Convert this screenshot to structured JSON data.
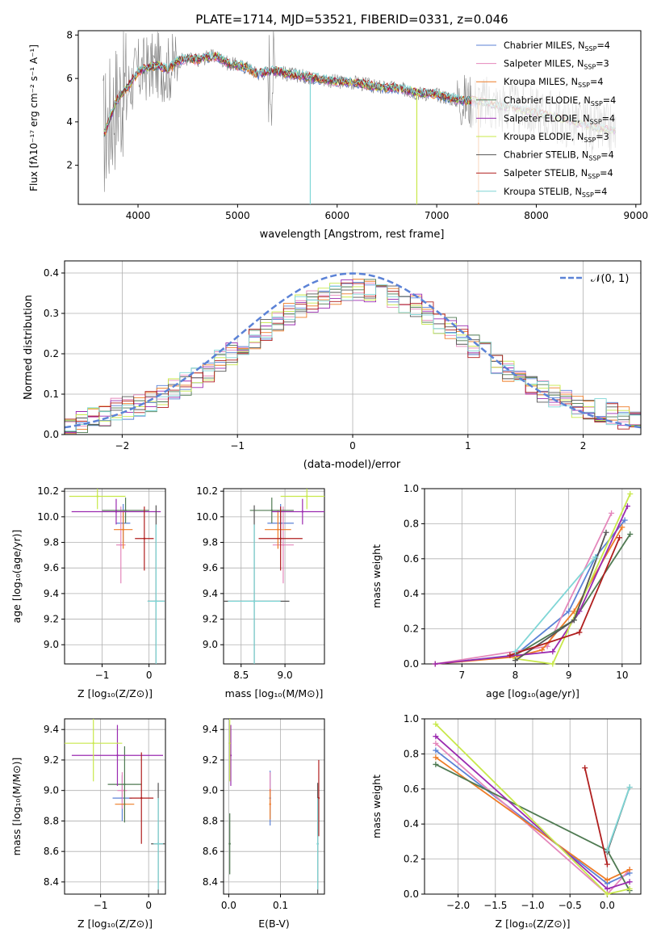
{
  "figure_title": "PLATE=1714, MJD=53521, FIBERID=0331, z=0.046",
  "colors": {
    "chabrier_miles": "#5b82d6",
    "salpeter_miles": "#e487bb",
    "kroupa_miles": "#ee7c26",
    "chabrier_elodie": "#4f7a52",
    "salpeter_elodie": "#9b2bb0",
    "kroupa_elodie": "#c8e84a",
    "chabrier_stelib": "#555555",
    "salpeter_stelib": "#b01e1e",
    "kroupa_stelib": "#7fd6d6",
    "data": "#808080",
    "gaussian": "#5b82d6",
    "grid": "#b0b0b0"
  },
  "chart_data": [
    {
      "id": "spectrum",
      "type": "line",
      "xlabel": "wavelength [Angstrom, rest frame]",
      "ylabel": "Flux [fλ10⁻¹⁷ erg cm⁻² s⁻¹ A⁻¹]",
      "xlim": [
        3400,
        9050
      ],
      "ylim": [
        0.2,
        8.2
      ],
      "xticks": [
        "4000",
        "5000",
        "6000",
        "7000",
        "8000",
        "9000"
      ],
      "yticks": [
        "2",
        "4",
        "6",
        "8"
      ],
      "grid": false,
      "legend_position": "top-right",
      "legend": [
        {
          "label": "Chabrier MILES, N",
          "sub": "SSP",
          "tail": "=4",
          "color_key": "chabrier_miles"
        },
        {
          "label": "Salpeter MILES, N",
          "sub": "SSP",
          "tail": "=3",
          "color_key": "salpeter_miles"
        },
        {
          "label": "Kroupa MILES, N",
          "sub": "SSP",
          "tail": "=4",
          "color_key": "kroupa_miles"
        },
        {
          "label": "Chabrier ELODIE, N",
          "sub": "SSP",
          "tail": "=4",
          "color_key": "chabrier_elodie"
        },
        {
          "label": "Salpeter ELODIE, N",
          "sub": "SSP",
          "tail": "=4",
          "color_key": "salpeter_elodie"
        },
        {
          "label": "Kroupa ELODIE, N",
          "sub": "SSP",
          "tail": "=3",
          "color_key": "kroupa_elodie"
        },
        {
          "label": "Chabrier STELIB, N",
          "sub": "SSP",
          "tail": "=4",
          "color_key": "chabrier_stelib"
        },
        {
          "label": "Salpeter STELIB, N",
          "sub": "SSP",
          "tail": "=4",
          "color_key": "salpeter_stelib"
        },
        {
          "label": "Kroupa STELIB, N",
          "sub": "SSP",
          "tail": "=4",
          "color_key": "kroupa_stelib"
        }
      ],
      "model_continuum": {
        "x": [
          3650,
          3700,
          3750,
          3800,
          3900,
          4000,
          4100,
          4200,
          4300,
          4400,
          4500,
          4600,
          4700,
          4800,
          4900,
          5000,
          5100,
          5200,
          5300,
          5400,
          5500,
          5600,
          5800,
          6000,
          6200,
          6400,
          6600,
          6800,
          7000,
          7200,
          7400,
          7600,
          7800,
          8000,
          8200,
          8400,
          8600,
          8800
        ],
        "y": [
          3.4,
          3.9,
          4.6,
          5.1,
          5.6,
          6.3,
          6.5,
          6.6,
          6.4,
          6.8,
          6.9,
          6.85,
          7.0,
          7.0,
          6.7,
          6.6,
          6.5,
          6.2,
          6.3,
          6.35,
          6.2,
          6.15,
          6.0,
          5.85,
          5.8,
          5.6,
          5.55,
          5.35,
          5.25,
          5.0,
          4.95,
          4.75,
          4.6,
          4.4,
          4.2,
          3.95,
          3.7,
          3.55
        ]
      },
      "telluric_drops": [
        {
          "x": 5730,
          "color_key": "kroupa_stelib"
        },
        {
          "x": 6800,
          "color_key": "kroupa_elodie"
        },
        {
          "x": 7420,
          "color_key": "kroupa_miles"
        }
      ]
    },
    {
      "id": "residuals",
      "type": "histogram",
      "xlabel": "(data-model)/error",
      "ylabel": "Normed distribution",
      "xlim": [
        -2.5,
        2.5
      ],
      "ylim": [
        0,
        0.43
      ],
      "xticks": [
        "−2",
        "−1",
        "0",
        "1",
        "2"
      ],
      "yticks": [
        "0.0",
        "0.1",
        "0.2",
        "0.3",
        "0.4"
      ],
      "grid": true,
      "legend_position": "top-right",
      "legend_label": "𝒩(0, 1)",
      "bin_width": 0.1,
      "approx_values": [
        0.02,
        0.03,
        0.04,
        0.05,
        0.06,
        0.065,
        0.07,
        0.08,
        0.095,
        0.11,
        0.125,
        0.14,
        0.16,
        0.18,
        0.2,
        0.22,
        0.24,
        0.26,
        0.28,
        0.3,
        0.32,
        0.33,
        0.34,
        0.35,
        0.355,
        0.36,
        0.355,
        0.35,
        0.34,
        0.33,
        0.32,
        0.3,
        0.28,
        0.26,
        0.24,
        0.22,
        0.2,
        0.18,
        0.16,
        0.14,
        0.125,
        0.11,
        0.095,
        0.08,
        0.07,
        0.065,
        0.06,
        0.05,
        0.04,
        0.03
      ]
    },
    {
      "id": "age_vs_Z",
      "type": "scatter",
      "xlabel": "Z [log₁₀(Z/Z⊙)]",
      "ylabel": "age  [log₁₀(age/yr)]",
      "xlim": [
        -1.8,
        0.35
      ],
      "ylim": [
        8.85,
        10.22
      ],
      "xticks": [
        "−1",
        "0"
      ],
      "yticks": [
        "9.0",
        "9.2",
        "9.4",
        "9.6",
        "9.8",
        "10.0",
        "10.2"
      ],
      "grid": true,
      "points": [
        {
          "x": -0.55,
          "y": 9.95,
          "xerr": 0.15,
          "yerr": 0.15,
          "color_key": "chabrier_miles"
        },
        {
          "x": -0.6,
          "y": 9.78,
          "xerr": 0.1,
          "yerr": 0.3,
          "color_key": "salpeter_miles"
        },
        {
          "x": -0.55,
          "y": 9.9,
          "xerr": 0.2,
          "yerr": 0.15,
          "color_key": "kroupa_miles"
        },
        {
          "x": -0.5,
          "y": 10.05,
          "xerr": 0.5,
          "yerr": 0.1,
          "color_key": "chabrier_elodie"
        },
        {
          "x": -0.7,
          "y": 10.04,
          "xerr": 0.95,
          "yerr": 0.1,
          "color_key": "salpeter_elodie"
        },
        {
          "x": -1.1,
          "y": 10.16,
          "xerr": 0.6,
          "yerr": 0.1,
          "color_key": "kroupa_elodie"
        },
        {
          "x": 0.15,
          "y": 9.34,
          "xerr": 0.18,
          "yerr": 0.75,
          "color_key": "chabrier_stelib"
        },
        {
          "x": -0.1,
          "y": 9.83,
          "xerr": 0.2,
          "yerr": 0.25,
          "color_key": "salpeter_stelib"
        },
        {
          "x": 0.15,
          "y": 9.34,
          "xerr": 0.18,
          "yerr": 0.6,
          "color_key": "kroupa_stelib"
        }
      ]
    },
    {
      "id": "age_vs_mass",
      "type": "scatter",
      "xlabel": "mass [log₁₀(M/M⊙)]",
      "ylabel": "",
      "xlim": [
        8.3,
        9.45
      ],
      "ylim": [
        8.85,
        10.22
      ],
      "xticks": [
        "8.5",
        "9.0"
      ],
      "yticks": [
        "9.0",
        "9.2",
        "9.4",
        "9.6",
        "9.8",
        "10.0",
        "10.2"
      ],
      "grid": true,
      "points": [
        {
          "x": 8.95,
          "y": 9.95,
          "xerr": 0.15,
          "yerr": 0.15,
          "color_key": "chabrier_miles"
        },
        {
          "x": 8.98,
          "y": 9.78,
          "xerr": 0.12,
          "yerr": 0.3,
          "color_key": "salpeter_miles"
        },
        {
          "x": 8.92,
          "y": 9.9,
          "xerr": 0.15,
          "yerr": 0.15,
          "color_key": "kroupa_miles"
        },
        {
          "x": 8.85,
          "y": 10.05,
          "xerr": 0.25,
          "yerr": 0.1,
          "color_key": "chabrier_elodie"
        },
        {
          "x": 9.2,
          "y": 10.04,
          "xerr": 0.35,
          "yerr": 0.1,
          "color_key": "salpeter_elodie"
        },
        {
          "x": 9.25,
          "y": 10.16,
          "xerr": 0.3,
          "yerr": 0.1,
          "color_key": "kroupa_elodie"
        },
        {
          "x": 8.65,
          "y": 9.34,
          "xerr": 0.4,
          "yerr": 0.75,
          "color_key": "chabrier_stelib"
        },
        {
          "x": 8.95,
          "y": 9.83,
          "xerr": 0.25,
          "yerr": 0.25,
          "color_key": "salpeter_stelib"
        },
        {
          "x": 8.65,
          "y": 9.34,
          "xerr": 0.3,
          "yerr": 0.6,
          "color_key": "kroupa_stelib"
        }
      ]
    },
    {
      "id": "mass_weight_vs_age",
      "type": "line",
      "xlabel": "age  [log₁₀(age/yr)]",
      "ylabel": "mass weight",
      "xlim": [
        6.3,
        10.35
      ],
      "ylim": [
        0,
        1.0
      ],
      "xticks": [
        "7",
        "8",
        "9",
        "10"
      ],
      "yticks": [
        "0.0",
        "0.2",
        "0.4",
        "0.6",
        "0.8",
        "1.0"
      ],
      "grid": true,
      "series": [
        {
          "color_key": "chabrier_miles",
          "x": [
            6.5,
            8.0,
            9.0,
            9.5,
            10.05
          ],
          "y": [
            0.0,
            0.05,
            0.3,
            0.61,
            0.82
          ]
        },
        {
          "color_key": "salpeter_miles",
          "x": [
            6.5,
            8.6,
            9.8
          ],
          "y": [
            0.0,
            0.1,
            0.86
          ]
        },
        {
          "color_key": "kroupa_miles",
          "x": [
            6.5,
            8.0,
            8.5,
            9.1,
            10.0
          ],
          "y": [
            0.0,
            0.04,
            0.08,
            0.3,
            0.78
          ]
        },
        {
          "color_key": "chabrier_elodie",
          "x": [
            8.0,
            9.1,
            10.15
          ],
          "y": [
            0.05,
            0.25,
            0.74
          ]
        },
        {
          "color_key": "salpeter_elodie",
          "x": [
            6.5,
            8.7,
            9.2,
            10.1
          ],
          "y": [
            0.0,
            0.07,
            0.3,
            0.9
          ]
        },
        {
          "color_key": "kroupa_elodie",
          "x": [
            8.0,
            8.7,
            10.15
          ],
          "y": [
            0.03,
            0.0,
            0.97
          ]
        },
        {
          "color_key": "chabrier_stelib",
          "x": [
            8.0,
            9.1,
            9.7
          ],
          "y": [
            0.02,
            0.25,
            0.75
          ]
        },
        {
          "color_key": "salpeter_stelib",
          "x": [
            7.9,
            9.2,
            9.95
          ],
          "y": [
            0.05,
            0.18,
            0.72
          ]
        },
        {
          "color_key": "kroupa_stelib",
          "x": [
            8.0,
            9.5
          ],
          "y": [
            0.07,
            0.61
          ]
        }
      ]
    },
    {
      "id": "mass_vs_Z",
      "type": "scatter",
      "xlabel": "Z [log₁₀(Z/Z⊙)]",
      "ylabel": "mass [log₁₀(M/M⊙)]",
      "xlim": [
        -1.75,
        0.35
      ],
      "ylim": [
        8.32,
        9.47
      ],
      "xticks": [
        "−1",
        "0"
      ],
      "yticks": [
        "8.4",
        "8.6",
        "8.8",
        "9.0",
        "9.2",
        "9.4"
      ],
      "grid": true,
      "points": [
        {
          "x": -0.55,
          "y": 8.95,
          "xerr": 0.2,
          "yerr": 0.15,
          "color_key": "chabrier_miles"
        },
        {
          "x": -0.55,
          "y": 9.0,
          "xerr": 0.1,
          "yerr": 0.12,
          "color_key": "salpeter_miles"
        },
        {
          "x": -0.5,
          "y": 8.91,
          "xerr": 0.2,
          "yerr": 0.1,
          "color_key": "kroupa_miles"
        },
        {
          "x": -0.5,
          "y": 9.04,
          "xerr": 0.35,
          "yerr": 0.25,
          "color_key": "chabrier_elodie"
        },
        {
          "x": -0.65,
          "y": 9.23,
          "xerr": 0.95,
          "yerr": 0.2,
          "color_key": "salpeter_elodie"
        },
        {
          "x": -1.15,
          "y": 9.31,
          "xerr": 0.6,
          "yerr": 0.25,
          "color_key": "kroupa_elodie"
        },
        {
          "x": 0.2,
          "y": 8.65,
          "xerr": 0.15,
          "yerr": 0.4,
          "color_key": "chabrier_stelib"
        },
        {
          "x": -0.15,
          "y": 8.95,
          "xerr": 0.25,
          "yerr": 0.3,
          "color_key": "salpeter_stelib"
        },
        {
          "x": 0.2,
          "y": 8.65,
          "xerr": 0.1,
          "yerr": 0.3,
          "color_key": "kroupa_stelib"
        }
      ]
    },
    {
      "id": "mass_vs_ebv",
      "type": "scatter",
      "xlabel": "E(B-V)",
      "ylabel": "",
      "xlim": [
        -0.01,
        0.185
      ],
      "ylim": [
        8.32,
        9.47
      ],
      "xticks": [
        "0.0",
        "0.1"
      ],
      "yticks": [
        "8.4",
        "8.6",
        "8.8",
        "9.0",
        "9.2",
        "9.4"
      ],
      "grid": true,
      "points": [
        {
          "x": 0.08,
          "y": 8.95,
          "yerr": 0.18,
          "color_key": "chabrier_miles"
        },
        {
          "x": 0.08,
          "y": 9.0,
          "yerr": 0.12,
          "color_key": "salpeter_miles"
        },
        {
          "x": 0.08,
          "y": 8.91,
          "yerr": 0.1,
          "color_key": "kroupa_miles"
        },
        {
          "x": 0.002,
          "y": 8.65,
          "yerr": 0.2,
          "color_key": "chabrier_elodie"
        },
        {
          "x": 0.004,
          "y": 9.23,
          "yerr": 0.2,
          "color_key": "salpeter_elodie"
        },
        {
          "x": 0.002,
          "y": 9.31,
          "yerr": 0.25,
          "color_key": "kroupa_elodie"
        },
        {
          "x": 0.172,
          "y": 8.65,
          "yerr": 0.4,
          "color_key": "chabrier_stelib"
        },
        {
          "x": 0.174,
          "y": 8.95,
          "yerr": 0.25,
          "color_key": "salpeter_stelib"
        },
        {
          "x": 0.172,
          "y": 8.65,
          "yerr": 0.3,
          "color_key": "kroupa_stelib"
        }
      ]
    },
    {
      "id": "mass_weight_vs_Z",
      "type": "line",
      "xlabel": "Z [log₁₀(Z/Z⊙)]",
      "ylabel": "mass weight",
      "xlim": [
        -2.45,
        0.45
      ],
      "ylim": [
        0,
        1.0
      ],
      "xticks": [
        "−2.0",
        "−1.5",
        "−1.0",
        "−0.5",
        "0.0"
      ],
      "yticks": [
        "0.0",
        "0.2",
        "0.4",
        "0.6",
        "0.8",
        "1.0"
      ],
      "grid": true,
      "series": [
        {
          "color_key": "chabrier_miles",
          "x": [
            -2.3,
            0.0,
            0.3
          ],
          "y": [
            0.82,
            0.06,
            0.12
          ]
        },
        {
          "color_key": "salpeter_miles",
          "x": [
            -2.3,
            0.0,
            0.3
          ],
          "y": [
            0.86,
            0.0,
            0.14
          ]
        },
        {
          "color_key": "kroupa_miles",
          "x": [
            -2.3,
            0.0,
            0.3
          ],
          "y": [
            0.78,
            0.08,
            0.14
          ]
        },
        {
          "color_key": "chabrier_elodie",
          "x": [
            -2.3,
            0.0,
            0.3
          ],
          "y": [
            0.74,
            0.25,
            0.02
          ]
        },
        {
          "color_key": "salpeter_elodie",
          "x": [
            -2.3,
            0.0,
            0.3
          ],
          "y": [
            0.9,
            0.03,
            0.07
          ]
        },
        {
          "color_key": "kroupa_elodie",
          "x": [
            -2.3,
            0.0,
            0.3
          ],
          "y": [
            0.97,
            0.0,
            0.03
          ]
        },
        {
          "color_key": "chabrier_stelib",
          "x": [
            0.0,
            0.3
          ],
          "y": [
            0.24,
            0.61
          ]
        },
        {
          "color_key": "salpeter_stelib",
          "x": [
            -0.3,
            0.0
          ],
          "y": [
            0.72,
            0.17
          ]
        },
        {
          "color_key": "kroupa_stelib",
          "x": [
            0.0,
            0.3
          ],
          "y": [
            0.25,
            0.61
          ]
        }
      ]
    }
  ]
}
